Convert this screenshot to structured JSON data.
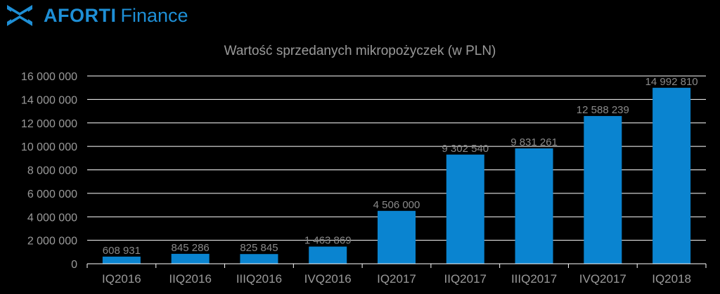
{
  "brand": {
    "name": "AFORTI",
    "sub": "Finance",
    "logo_icon": "aforti-logo-icon",
    "color": "#1e8fd6"
  },
  "chart_data": {
    "type": "bar",
    "title": "Wartość sprzedanych mikropożyczek (w PLN)",
    "xlabel": "",
    "ylabel": "",
    "categories": [
      "IQ2016",
      "IIQ2016",
      "IIIQ2016",
      "IVQ2016",
      "IQ2017",
      "IIQ2017",
      "IIIQ2017",
      "IVQ2017",
      "IQ2018"
    ],
    "values": [
      608931,
      845286,
      825845,
      1463869,
      4506000,
      9302540,
      9831261,
      12588239,
      14992810
    ],
    "value_labels": [
      "608 931",
      "845 286",
      "825 845",
      "1 463 869",
      "4 506 000",
      "9 302 540",
      "9 831 261",
      "12 588 239",
      "14 992 810"
    ],
    "ylim": [
      0,
      16000000
    ],
    "yticks": [
      0,
      2000000,
      4000000,
      6000000,
      8000000,
      10000000,
      12000000,
      14000000,
      16000000
    ],
    "ytick_labels": [
      "0",
      "2 000 000",
      "4 000 000",
      "6 000 000",
      "8 000 000",
      "10 000 000",
      "12 000 000",
      "14 000 000",
      "16 000 000"
    ],
    "grid": true,
    "legend": "none",
    "bar_color": "#0a84d0",
    "label_color": "#8a8a8a",
    "grid_color": "#ffffff",
    "background": "#000000"
  }
}
